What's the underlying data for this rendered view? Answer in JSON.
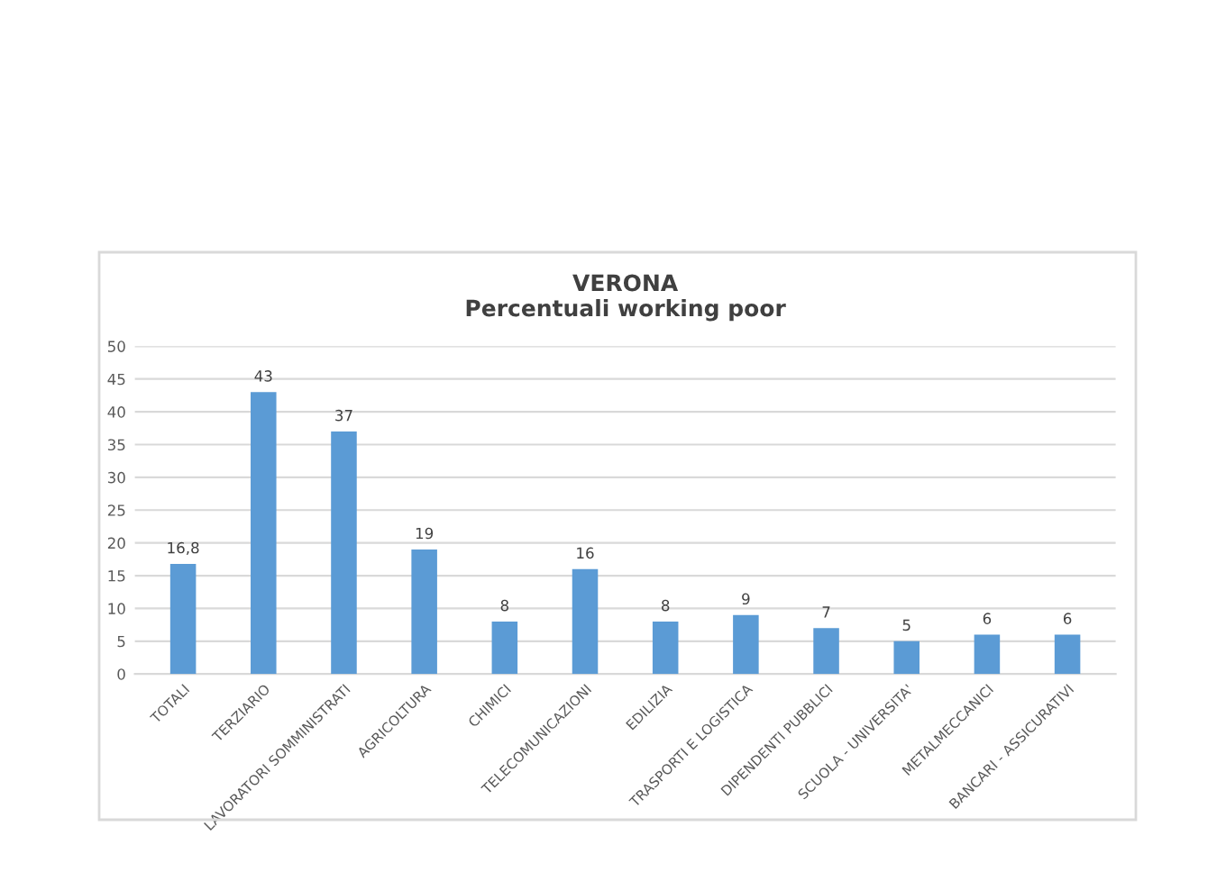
{
  "chart_data": {
    "type": "bar",
    "title": "VERONA\nPercentuali working poor",
    "categories": [
      "TOTALI",
      "TERZIARIO",
      "LAVORATORI SOMMINISTRATI",
      "AGRICOLTURA",
      "CHIMICI",
      "TELECOMUNICAZIONI",
      "EDILIZIA",
      "TRASPORTI E LOGISTICA",
      "DIPENDENTI PUBBLICI",
      "SCUOLA - UNIVERSITA'",
      "METALMECCANICI",
      "BANCARI - ASSICURATIVI"
    ],
    "values": [
      16.8,
      43,
      37,
      19,
      8,
      16,
      8,
      9,
      7,
      5,
      6,
      6
    ],
    "value_labels": [
      "16,8",
      "43",
      "37",
      "19",
      "8",
      "16",
      "8",
      "9",
      "7",
      "5",
      "6",
      "6"
    ],
    "color": "#5b9bd5",
    "ylim": [
      0,
      50
    ],
    "yticks": [
      0,
      5,
      10,
      15,
      20,
      25,
      30,
      35,
      40,
      45,
      50
    ],
    "grid": "y"
  }
}
